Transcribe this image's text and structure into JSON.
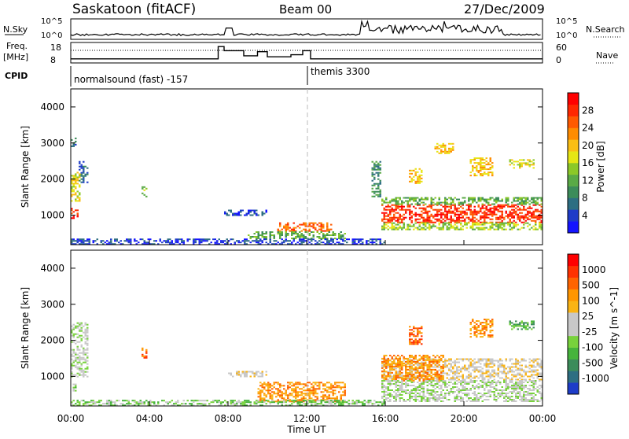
{
  "header": {
    "station": "Saskatoon (fitACF)",
    "beam": "Beam 00",
    "date": "27/Dec/2009"
  },
  "nsky_panel": {
    "left_label": "N.Sky",
    "right_label": "N.Search",
    "left_ticks": [
      "10^5",
      "10^0"
    ],
    "right_ticks": [
      "10^5",
      "10^0"
    ]
  },
  "freq_panel": {
    "left_label_line1": "Freq.",
    "left_label_line2": "[MHz]",
    "right_label": "Nave",
    "left_ticks": [
      "18",
      "8"
    ],
    "right_ticks": [
      "60",
      "0"
    ]
  },
  "cpid": {
    "label": "CPID",
    "modes": [
      {
        "text": "normalsound (fast) -157",
        "start_hour": 0
      },
      {
        "text": "themis 3300",
        "start_hour": 12
      }
    ]
  },
  "chart_data": [
    {
      "type": "heatmap",
      "name": "power",
      "ylabel": "Slant Range [km]",
      "yticks": [
        "4000",
        "3000",
        "2000",
        "1000"
      ],
      "ylim": [
        180,
        4500
      ],
      "colorbar_label": "Power [dB]",
      "colorbar_ticks": [
        "28",
        "24",
        "20",
        "16",
        "12",
        "8",
        "4"
      ],
      "colorbar_colors": [
        "#1414ff",
        "#1e3cc8",
        "#2d6e82",
        "#3c8c5a",
        "#5aaa46",
        "#8cc828",
        "#e6e614",
        "#fabe14",
        "#ff8c00",
        "#ff5a00",
        "#ff2800",
        "#ff0000"
      ],
      "x_hours": [
        0,
        24
      ],
      "regions": [
        {
          "t0": 0.0,
          "t1": 0.4,
          "r0": 900,
          "r1": 1200,
          "level": 10
        },
        {
          "t0": 0.0,
          "t1": 0.5,
          "r0": 1400,
          "r1": 2200,
          "level": 6
        },
        {
          "t0": 0.4,
          "t1": 0.9,
          "r0": 1900,
          "r1": 2500,
          "level": 2
        },
        {
          "t0": 0.0,
          "t1": 0.25,
          "r0": 2900,
          "r1": 3150,
          "level": 2
        },
        {
          "t0": 3.6,
          "t1": 3.9,
          "r0": 1500,
          "r1": 1800,
          "level": 5
        },
        {
          "t0": 7.8,
          "t1": 10.0,
          "r0": 1000,
          "r1": 1150,
          "level": 1
        },
        {
          "t0": 10.5,
          "t1": 13.3,
          "r0": 550,
          "r1": 800,
          "level": 9
        },
        {
          "t0": 9.0,
          "t1": 14.0,
          "r0": 350,
          "r1": 550,
          "level": 4
        },
        {
          "t0": 0.0,
          "t1": 16.0,
          "r0": 200,
          "r1": 350,
          "level": 1
        },
        {
          "t0": 15.8,
          "t1": 24.0,
          "r0": 800,
          "r1": 1300,
          "level": 10
        },
        {
          "t0": 15.8,
          "t1": 24.0,
          "r0": 600,
          "r1": 800,
          "level": 5
        },
        {
          "t0": 15.8,
          "t1": 24.0,
          "r0": 1300,
          "r1": 1500,
          "level": 4
        },
        {
          "t0": 17.2,
          "t1": 17.9,
          "r0": 1900,
          "r1": 2300,
          "level": 7
        },
        {
          "t0": 20.3,
          "t1": 21.5,
          "r0": 2100,
          "r1": 2600,
          "level": 7
        },
        {
          "t0": 22.3,
          "t1": 23.6,
          "r0": 2300,
          "r1": 2550,
          "level": 6
        },
        {
          "t0": 15.3,
          "t1": 15.8,
          "r0": 1500,
          "r1": 2500,
          "level": 3
        },
        {
          "t0": 18.5,
          "t1": 19.5,
          "r0": 2700,
          "r1": 3000,
          "level": 7
        }
      ]
    },
    {
      "type": "heatmap",
      "name": "velocity",
      "ylabel": "Slant Range [km]",
      "yticks": [
        "4000",
        "3000",
        "2000",
        "1000"
      ],
      "ylim": [
        180,
        4500
      ],
      "colorbar_label": "Velocity [m s^-1]",
      "colorbar_ticks": [
        "1000",
        "500",
        "100",
        "25",
        "-25",
        "-100",
        "-500",
        "-1000"
      ],
      "colorbar_colors": [
        "#1e3cc8",
        "#2d6e82",
        "#3c8c5a",
        "#46b43c",
        "#78d23c",
        "#c8c8c8",
        "#c8c8c8",
        "#fab414",
        "#ff9600",
        "#ff6400",
        "#ff3200",
        "#ff0000"
      ],
      "x_hours": [
        0,
        24
      ],
      "regions": [
        {
          "t0": 0.0,
          "t1": 0.9,
          "r0": 1000,
          "r1": 2500,
          "level": 5
        },
        {
          "t0": 0.1,
          "t1": 0.3,
          "r0": 600,
          "r1": 800,
          "level": 4
        },
        {
          "t0": 3.6,
          "t1": 3.9,
          "r0": 1500,
          "r1": 1800,
          "level": 9
        },
        {
          "t0": 8.0,
          "t1": 10.0,
          "r0": 1000,
          "r1": 1150,
          "level": 6
        },
        {
          "t0": 9.5,
          "t1": 14.0,
          "r0": 300,
          "r1": 850,
          "level": 8
        },
        {
          "t0": 0.0,
          "t1": 16.0,
          "r0": 200,
          "r1": 350,
          "level": 4
        },
        {
          "t0": 15.8,
          "t1": 24.0,
          "r0": 900,
          "r1": 1500,
          "level": 6
        },
        {
          "t0": 15.8,
          "t1": 19.0,
          "r0": 900,
          "r1": 1600,
          "level": 8
        },
        {
          "t0": 15.8,
          "t1": 24.0,
          "r0": 300,
          "r1": 900,
          "level": 5
        },
        {
          "t0": 17.2,
          "t1": 17.9,
          "r0": 1900,
          "r1": 2400,
          "level": 9
        },
        {
          "t0": 20.3,
          "t1": 21.5,
          "r0": 2100,
          "r1": 2600,
          "level": 8
        },
        {
          "t0": 22.3,
          "t1": 23.6,
          "r0": 2300,
          "r1": 2550,
          "level": 3
        }
      ]
    }
  ],
  "time_axis": {
    "tick_labels": [
      "00:00",
      "04:00",
      "08:00",
      "12:00",
      "16:00",
      "20:00",
      "00:00"
    ],
    "xlabel": "Time UT"
  }
}
